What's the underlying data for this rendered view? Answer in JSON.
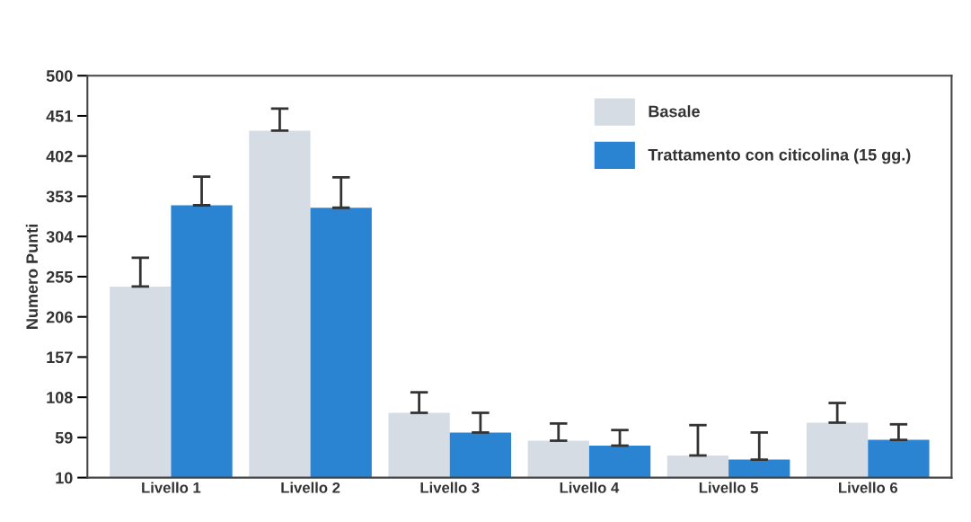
{
  "chart_data": {
    "type": "bar",
    "ylabel": "Numero Punti",
    "categories": [
      "Livello 1",
      "Livello 2",
      "Livello 3",
      "Livello 4",
      "Livello 5",
      "Livello 6"
    ],
    "series": [
      {
        "name": "Basale",
        "color": "#d6dce4",
        "values": [
          243,
          433,
          89,
          55,
          37,
          77
        ],
        "errors": [
          [
            243,
            278
          ],
          [
            433,
            460
          ],
          [
            89,
            114
          ],
          [
            55,
            76
          ],
          [
            37,
            74
          ],
          [
            77,
            101
          ]
        ]
      },
      {
        "name": "Trattamento con citicolina (15 gg.)",
        "color": "#2a84d2",
        "values": [
          342,
          339,
          65,
          49,
          32,
          56
        ],
        "errors": [
          [
            342,
            377
          ],
          [
            339,
            376
          ],
          [
            65,
            89
          ],
          [
            49,
            68
          ],
          [
            32,
            65
          ],
          [
            56,
            75
          ]
        ]
      }
    ],
    "ylim": [
      10,
      500
    ],
    "yticks": [
      10,
      59,
      108,
      157,
      206,
      255,
      304,
      353,
      402,
      451,
      500
    ],
    "grid": false,
    "legend": "top right"
  }
}
